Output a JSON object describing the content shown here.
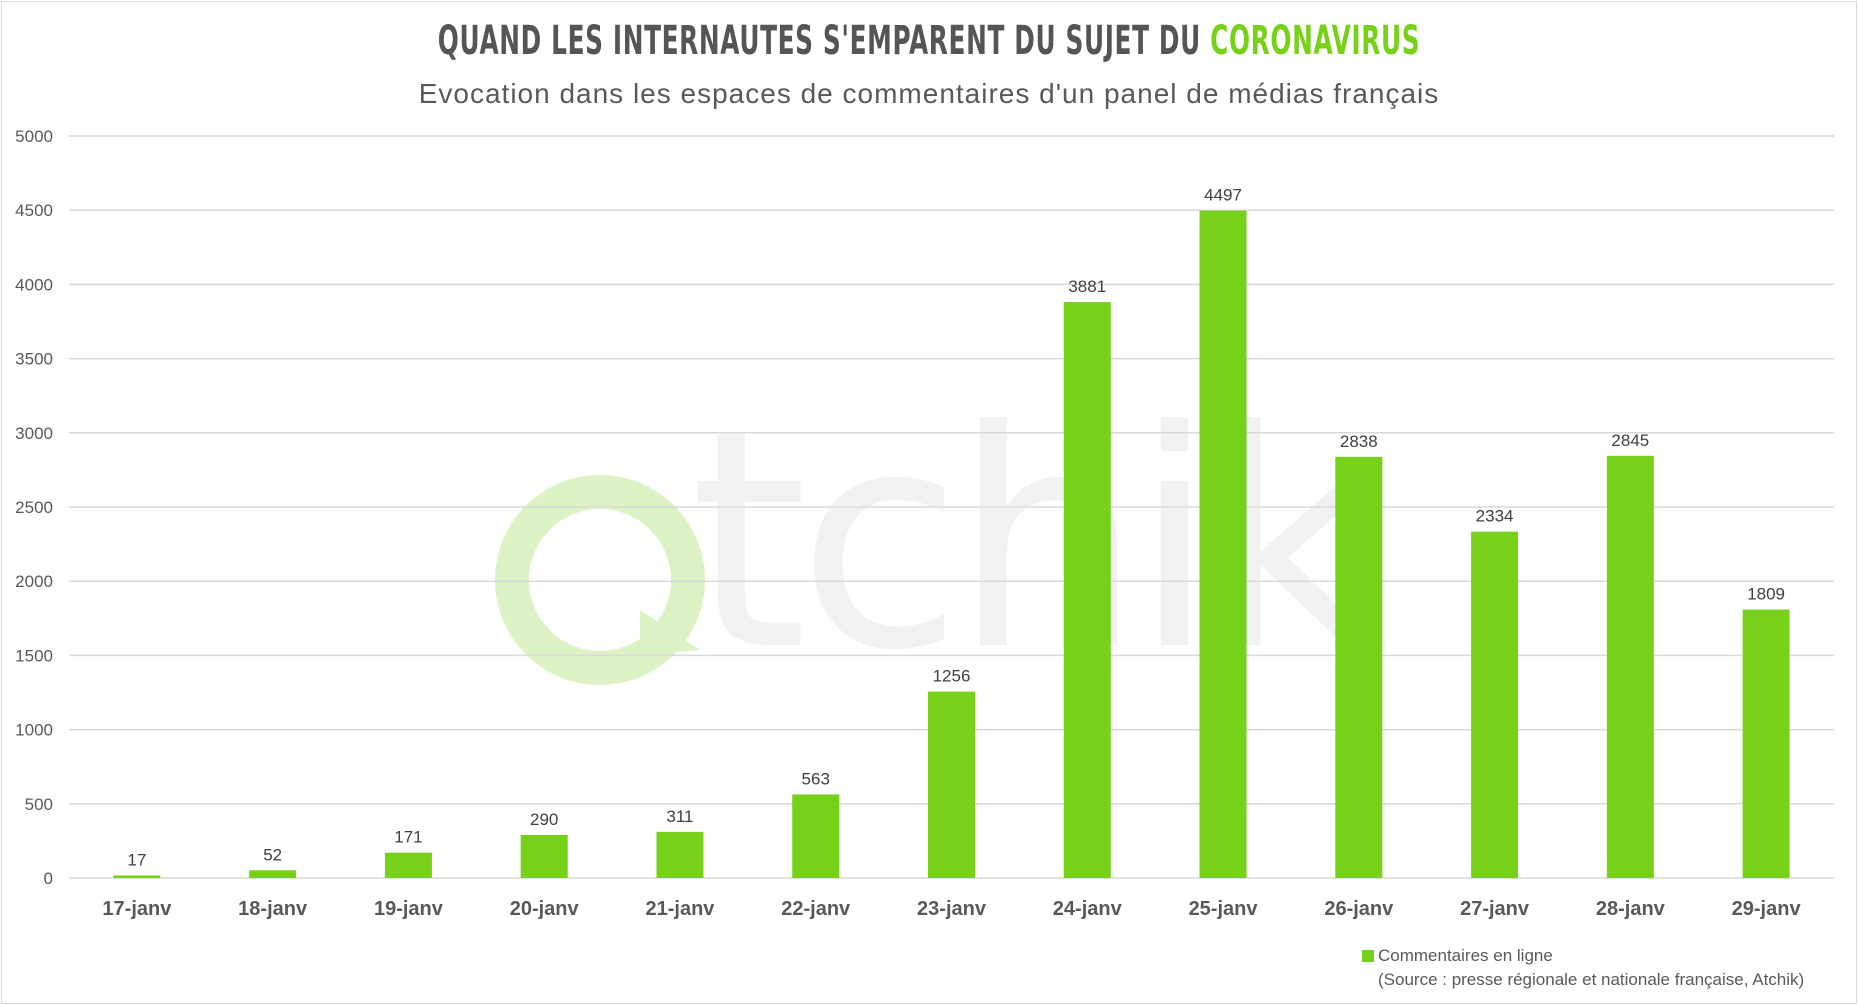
{
  "chart_data": {
    "type": "bar",
    "title": "QUAND LES INTERNAUTES S'EMPARENT DU SUJET DU",
    "title_highlight": "CORONAVIRUS",
    "subtitle": "Evocation dans les espaces de commentaires d'un panel de médias français",
    "categories": [
      "17-janv",
      "18-janv",
      "19-janv",
      "20-janv",
      "21-janv",
      "22-janv",
      "23-janv",
      "24-janv",
      "25-janv",
      "26-janv",
      "27-janv",
      "28-janv",
      "29-janv"
    ],
    "series": [
      {
        "name": "Commentaires en ligne",
        "values": [
          17,
          52,
          171,
          290,
          311,
          563,
          1256,
          3881,
          4497,
          2838,
          2334,
          2845,
          1809
        ]
      }
    ],
    "yticks": [
      0,
      500,
      1000,
      1500,
      2000,
      2500,
      3000,
      3500,
      4000,
      4500,
      5000
    ],
    "ylim": [
      0,
      5000
    ],
    "grid": true,
    "legend_position": "bottom-right",
    "source": "(Source : presse régionale et nationale française, Atchik)",
    "watermark": "atchik",
    "colors": {
      "bar": "#77d11a",
      "title": "#555555",
      "grid": "#d9d9d9"
    }
  }
}
